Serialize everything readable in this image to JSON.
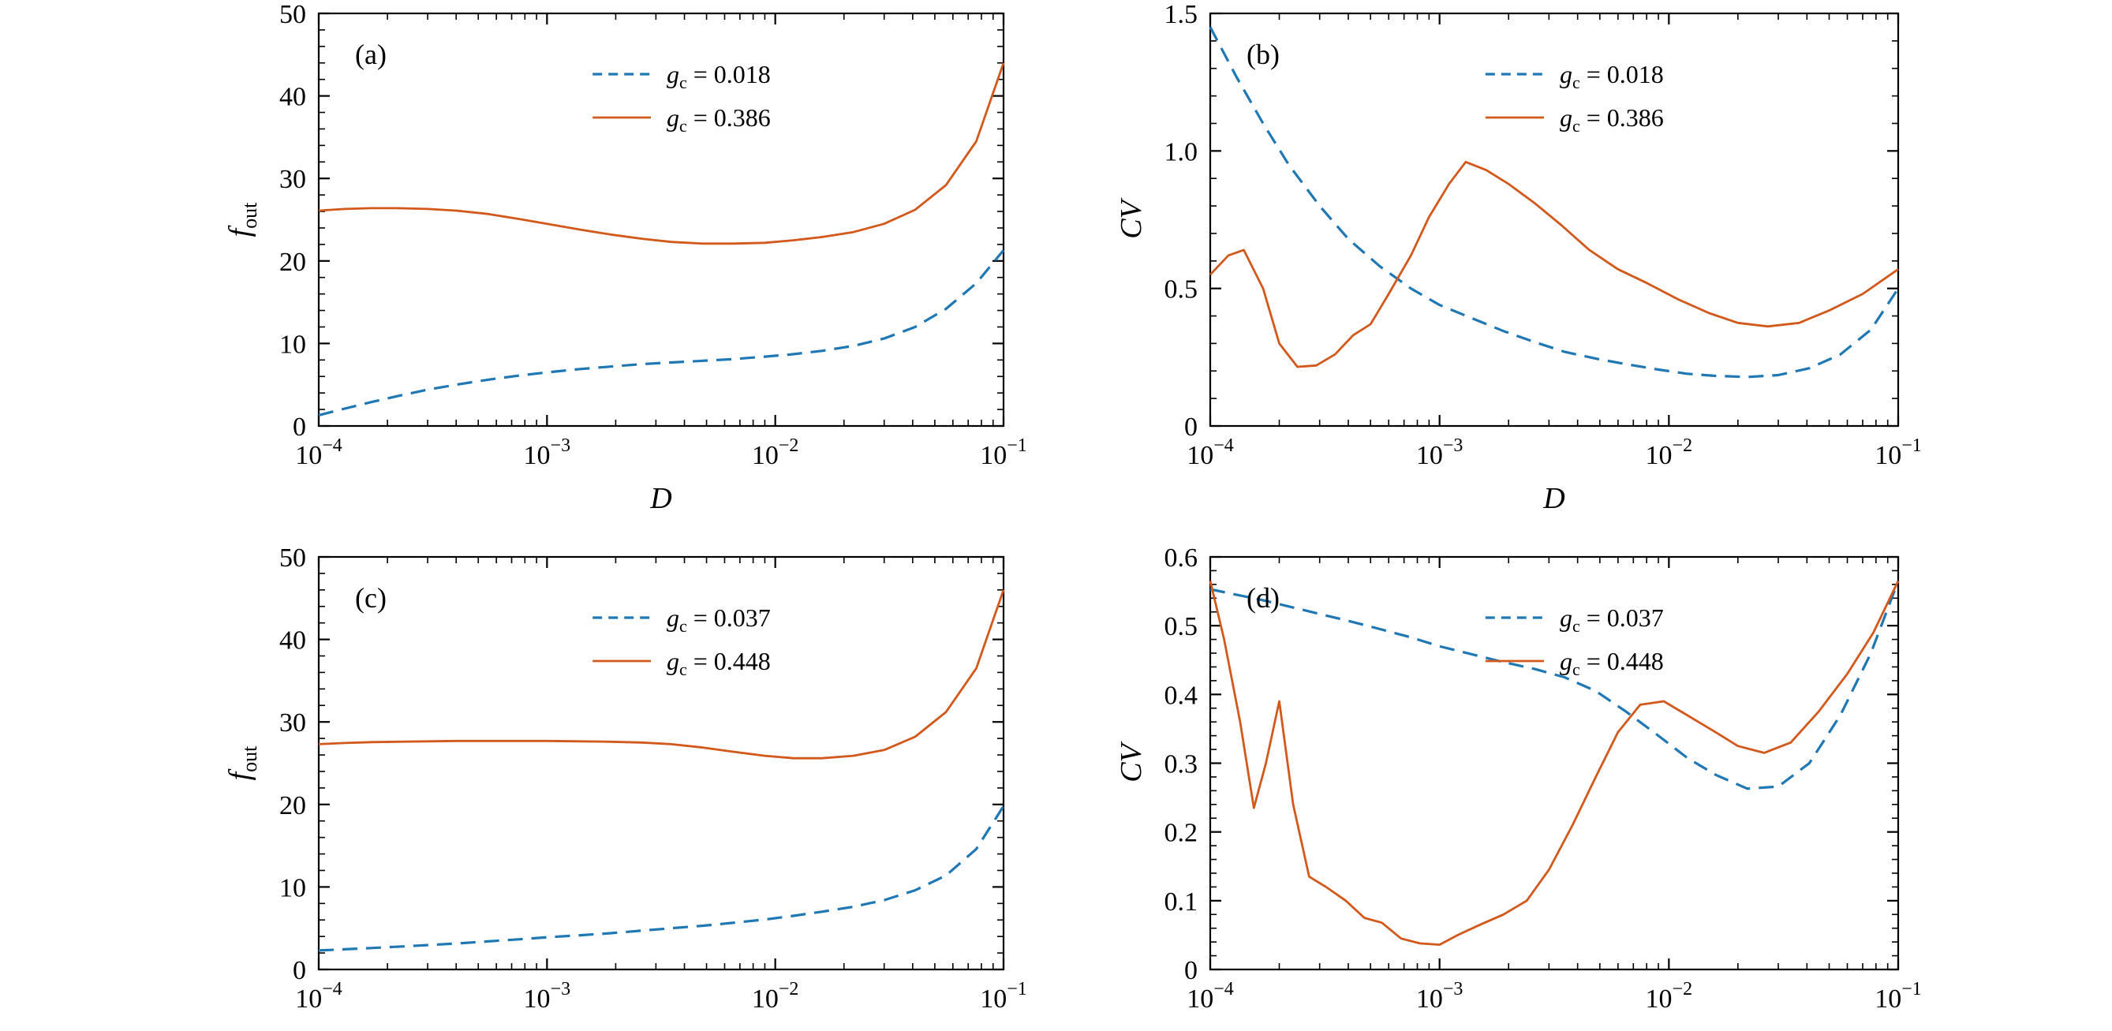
{
  "figure": {
    "background": "#ffffff",
    "colors": {
      "blue": "#1f77b4",
      "orange": "#d2581b",
      "axis": "#000000"
    }
  },
  "chart_data": [
    {
      "type": "line",
      "panel_label": "(a)",
      "xlabel": "D",
      "ylabel": "f_out",
      "xscale": "log",
      "grid": false,
      "legend_position": "upper center",
      "xlim": [
        0.0001,
        0.1
      ],
      "xticks": [
        0.0001,
        0.001,
        0.01,
        0.1
      ],
      "xtick_labels": [
        "10^-4",
        "10^-3",
        "10^-2",
        "10^-1"
      ],
      "ylim": [
        0,
        50
      ],
      "yticks": [
        0,
        10,
        20,
        30,
        40,
        50
      ],
      "ytick_labels": [
        "0",
        "10",
        "20",
        "30",
        "40",
        "50"
      ],
      "yminor_step": 2,
      "series": [
        {
          "name": "gc = 0.018",
          "symbol": "g_c",
          "value": "0.018",
          "color": "blue",
          "line": "dashed",
          "x": [
            0.0001,
            0.00013,
            0.00017,
            0.00022,
            0.0003,
            0.0004,
            0.00055,
            0.00075,
            0.001,
            0.0014,
            0.0019,
            0.0026,
            0.0035,
            0.0048,
            0.0065,
            0.009,
            0.012,
            0.016,
            0.022,
            0.03,
            0.041,
            0.056,
            0.076,
            0.1
          ],
          "y": [
            1.3,
            2.1,
            2.9,
            3.6,
            4.4,
            5.0,
            5.6,
            6.1,
            6.5,
            6.9,
            7.2,
            7.5,
            7.7,
            7.9,
            8.1,
            8.4,
            8.7,
            9.1,
            9.7,
            10.6,
            12.0,
            14.2,
            17.3,
            21.3
          ]
        },
        {
          "name": "gc = 0.386",
          "symbol": "g_c",
          "value": "0.386",
          "color": "orange",
          "line": "solid",
          "x": [
            0.0001,
            0.00013,
            0.00017,
            0.00022,
            0.0003,
            0.0004,
            0.00055,
            0.00075,
            0.001,
            0.0014,
            0.0019,
            0.0026,
            0.0035,
            0.0048,
            0.0065,
            0.009,
            0.012,
            0.016,
            0.022,
            0.03,
            0.041,
            0.056,
            0.076,
            0.1
          ],
          "y": [
            26.1,
            26.3,
            26.4,
            26.4,
            26.3,
            26.1,
            25.7,
            25.1,
            24.5,
            23.8,
            23.2,
            22.7,
            22.3,
            22.1,
            22.1,
            22.2,
            22.5,
            22.9,
            23.5,
            24.5,
            26.2,
            29.2,
            34.5,
            44.0
          ]
        }
      ]
    },
    {
      "type": "line",
      "panel_label": "(b)",
      "xlabel": "D",
      "ylabel": "CV",
      "xscale": "log",
      "grid": false,
      "legend_position": "upper center",
      "xlim": [
        0.0001,
        0.1
      ],
      "xticks": [
        0.0001,
        0.001,
        0.01,
        0.1
      ],
      "xtick_labels": [
        "10^-4",
        "10^-3",
        "10^-2",
        "10^-1"
      ],
      "ylim": [
        0,
        1.5
      ],
      "yticks": [
        0,
        0.5,
        1.0,
        1.5
      ],
      "ytick_labels": [
        "0",
        "0.5",
        "1.0",
        "1.5"
      ],
      "yminor_step": 0.1,
      "series": [
        {
          "name": "gc = 0.018",
          "symbol": "g_c",
          "value": "0.018",
          "color": "blue",
          "line": "dashed",
          "x": [
            0.0001,
            0.00013,
            0.00017,
            0.00022,
            0.0003,
            0.0004,
            0.00055,
            0.00075,
            0.001,
            0.0014,
            0.0019,
            0.0026,
            0.0035,
            0.0048,
            0.0065,
            0.009,
            0.012,
            0.016,
            0.022,
            0.03,
            0.041,
            0.056,
            0.076,
            0.1
          ],
          "y": [
            1.45,
            1.27,
            1.1,
            0.95,
            0.8,
            0.68,
            0.58,
            0.5,
            0.44,
            0.39,
            0.345,
            0.305,
            0.27,
            0.245,
            0.225,
            0.205,
            0.19,
            0.182,
            0.178,
            0.185,
            0.21,
            0.26,
            0.35,
            0.5
          ]
        },
        {
          "name": "gc = 0.386",
          "symbol": "g_c",
          "value": "0.386",
          "color": "orange",
          "line": "solid",
          "x": [
            0.0001,
            0.00012,
            0.00014,
            0.00017,
            0.0002,
            0.00024,
            0.00029,
            0.00035,
            0.00042,
            0.0005,
            0.0006,
            0.00075,
            0.0009,
            0.0011,
            0.0013,
            0.0016,
            0.002,
            0.0026,
            0.0034,
            0.0045,
            0.006,
            0.008,
            0.011,
            0.015,
            0.02,
            0.027,
            0.037,
            0.05,
            0.07,
            0.1
          ],
          "y": [
            0.55,
            0.62,
            0.64,
            0.5,
            0.3,
            0.215,
            0.22,
            0.26,
            0.33,
            0.37,
            0.48,
            0.62,
            0.76,
            0.88,
            0.96,
            0.93,
            0.88,
            0.81,
            0.73,
            0.64,
            0.57,
            0.52,
            0.46,
            0.41,
            0.375,
            0.362,
            0.375,
            0.42,
            0.48,
            0.57
          ]
        }
      ]
    },
    {
      "type": "line",
      "panel_label": "(c)",
      "xlabel": "D",
      "ylabel": "f_out",
      "xscale": "log",
      "grid": false,
      "legend_position": "upper center",
      "xlim": [
        0.0001,
        0.1
      ],
      "xticks": [
        0.0001,
        0.001,
        0.01,
        0.1
      ],
      "xtick_labels": [
        "10^-4",
        "10^-3",
        "10^-2",
        "10^-1"
      ],
      "ylim": [
        0,
        50
      ],
      "yticks": [
        0,
        10,
        20,
        30,
        40,
        50
      ],
      "ytick_labels": [
        "0",
        "10",
        "20",
        "30",
        "40",
        "50"
      ],
      "yminor_step": 2,
      "series": [
        {
          "name": "gc = 0.037",
          "symbol": "g_c",
          "value": "0.037",
          "color": "blue",
          "line": "dashed",
          "x": [
            0.0001,
            0.00013,
            0.00017,
            0.00022,
            0.0003,
            0.0004,
            0.00055,
            0.00075,
            0.001,
            0.0014,
            0.0019,
            0.0026,
            0.0035,
            0.0048,
            0.0065,
            0.009,
            0.012,
            0.016,
            0.022,
            0.03,
            0.041,
            0.056,
            0.076,
            0.1
          ],
          "y": [
            2.3,
            2.45,
            2.6,
            2.75,
            2.95,
            3.15,
            3.4,
            3.65,
            3.9,
            4.15,
            4.4,
            4.7,
            5.0,
            5.3,
            5.65,
            6.05,
            6.5,
            7.0,
            7.6,
            8.4,
            9.6,
            11.4,
            14.6,
            19.8
          ]
        },
        {
          "name": "gc = 0.448",
          "symbol": "g_c",
          "value": "0.448",
          "color": "orange",
          "line": "solid",
          "x": [
            0.0001,
            0.00013,
            0.00017,
            0.00022,
            0.0003,
            0.0004,
            0.00055,
            0.00075,
            0.001,
            0.0014,
            0.0019,
            0.0026,
            0.0035,
            0.0048,
            0.0065,
            0.009,
            0.012,
            0.016,
            0.022,
            0.03,
            0.041,
            0.056,
            0.076,
            0.1
          ],
          "y": [
            27.3,
            27.45,
            27.55,
            27.6,
            27.65,
            27.7,
            27.7,
            27.7,
            27.7,
            27.65,
            27.6,
            27.5,
            27.3,
            26.9,
            26.4,
            25.9,
            25.6,
            25.6,
            25.9,
            26.6,
            28.2,
            31.2,
            36.5,
            46.0
          ]
        }
      ]
    },
    {
      "type": "line",
      "panel_label": "(d)",
      "xlabel": "D",
      "ylabel": "CV",
      "xscale": "log",
      "grid": false,
      "legend_position": "upper center",
      "xlim": [
        0.0001,
        0.1
      ],
      "xticks": [
        0.0001,
        0.001,
        0.01,
        0.1
      ],
      "xtick_labels": [
        "10^-4",
        "10^-3",
        "10^-2",
        "10^-1"
      ],
      "ylim": [
        0,
        0.6
      ],
      "yticks": [
        0,
        0.1,
        0.2,
        0.3,
        0.4,
        0.5,
        0.6
      ],
      "ytick_labels": [
        "0",
        "0.1",
        "0.2",
        "0.3",
        "0.4",
        "0.5",
        "0.6"
      ],
      "yminor_step": 0.02,
      "series": [
        {
          "name": "gc = 0.037",
          "symbol": "g_c",
          "value": "0.037",
          "color": "blue",
          "line": "dashed",
          "x": [
            0.0001,
            0.00013,
            0.00017,
            0.00022,
            0.0003,
            0.0004,
            0.00055,
            0.00075,
            0.001,
            0.0014,
            0.0019,
            0.0026,
            0.0035,
            0.0048,
            0.0065,
            0.009,
            0.012,
            0.016,
            0.022,
            0.03,
            0.041,
            0.056,
            0.076,
            0.1
          ],
          "y": [
            0.553,
            0.545,
            0.537,
            0.528,
            0.517,
            0.507,
            0.495,
            0.483,
            0.47,
            0.458,
            0.447,
            0.437,
            0.425,
            0.405,
            0.375,
            0.34,
            0.308,
            0.283,
            0.263,
            0.266,
            0.3,
            0.37,
            0.46,
            0.565
          ]
        },
        {
          "name": "gc = 0.448",
          "symbol": "g_c",
          "value": "0.448",
          "color": "orange",
          "line": "solid",
          "x": [
            0.0001,
            0.000115,
            0.000135,
            0.000155,
            0.000175,
            0.0002,
            0.00023,
            0.00027,
            0.00032,
            0.00039,
            0.00047,
            0.00056,
            0.00068,
            0.00082,
            0.001,
            0.0012,
            0.0015,
            0.0019,
            0.0024,
            0.003,
            0.0038,
            0.0048,
            0.006,
            0.0075,
            0.0095,
            0.012,
            0.016,
            0.02,
            0.026,
            0.034,
            0.045,
            0.06,
            0.078,
            0.1
          ],
          "y": [
            0.565,
            0.48,
            0.36,
            0.235,
            0.3,
            0.39,
            0.24,
            0.135,
            0.12,
            0.1,
            0.075,
            0.068,
            0.045,
            0.038,
            0.036,
            0.05,
            0.065,
            0.08,
            0.1,
            0.145,
            0.21,
            0.28,
            0.345,
            0.385,
            0.39,
            0.37,
            0.345,
            0.325,
            0.315,
            0.33,
            0.375,
            0.43,
            0.49,
            0.565
          ]
        }
      ]
    }
  ]
}
